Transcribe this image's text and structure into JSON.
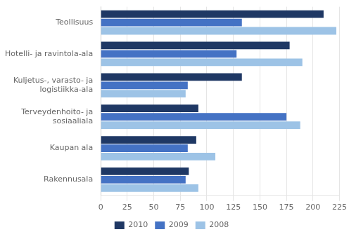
{
  "chart_data": {
    "type": "bar",
    "orientation": "horizontal",
    "categories": [
      "Teollisuus",
      "Hotelli- ja ravintola-ala",
      "Kuljetus-, varasto- ja\nlogistiikka-ala",
      "Terveydenhoito- ja\nsosiaaliala",
      "Kaupan ala",
      "Rakennusala"
    ],
    "series": [
      {
        "name": "2010",
        "color": "#1F3864",
        "values": [
          210,
          178,
          133,
          92,
          90,
          83
        ]
      },
      {
        "name": "2009",
        "color": "#4472C4",
        "values": [
          133,
          128,
          82,
          175,
          82,
          80
        ]
      },
      {
        "name": "2008",
        "color": "#9DC3E6",
        "values": [
          222,
          190,
          80,
          188,
          108,
          92
        ]
      }
    ],
    "xlim": [
      0,
      225
    ],
    "xticks": [
      0,
      25,
      50,
      75,
      100,
      125,
      150,
      175,
      200,
      225
    ],
    "grid": true,
    "legend": "bottom"
  }
}
